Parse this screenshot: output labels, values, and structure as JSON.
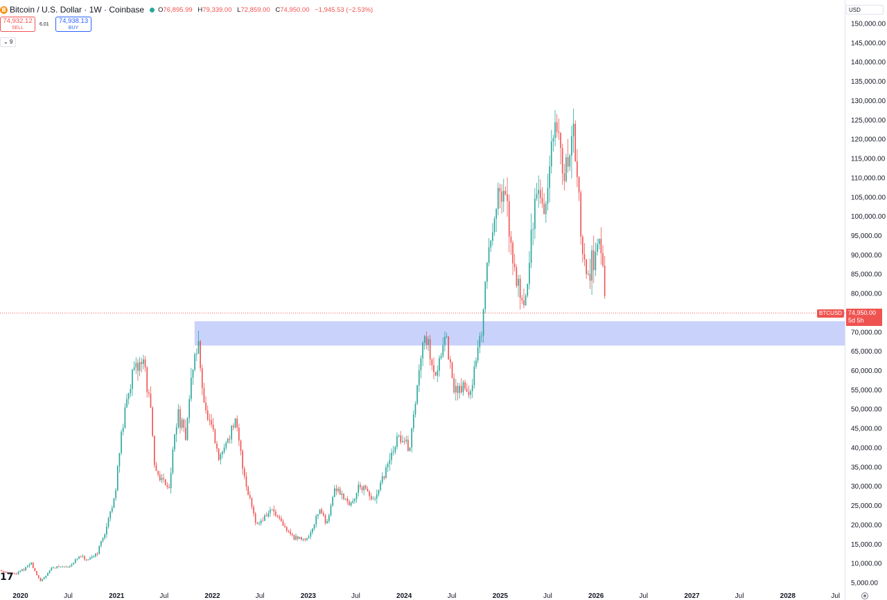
{
  "header": {
    "coin_icon": "bitcoin-icon",
    "coin_glyph": "B",
    "title": "Bitcoin / U.S. Dollar · 1W · Coinbase",
    "open_label": "O",
    "open": "76,895.99",
    "high_label": "H",
    "high": "79,339.00",
    "low_label": "L",
    "low": "72,859.00",
    "close_label": "C",
    "close": "74,950.00",
    "change": "−1,945.53 (−2.53%)"
  },
  "trade": {
    "sell_price": "74,932.12",
    "sell_label": "SELL",
    "spread": "6.01",
    "buy_price": "74,938.13",
    "buy_label": "BUY"
  },
  "indicator_toggle": "⌄ 9",
  "currency": "USD",
  "last_price": {
    "symbol": "BTCUSD",
    "price": "74,950.00",
    "countdown": "5d 5h"
  },
  "tv_logo": "17",
  "colors": {
    "up": "#26a69a",
    "down": "#ef5350",
    "zone": "#c9d2fb",
    "axis_text": "#131722",
    "price_line": "#ef5350"
  },
  "chart_data": {
    "type": "candlestick",
    "symbol": "BTCUSD",
    "interval": "1W",
    "ylim": [
      5000,
      150000
    ],
    "y_ticks": [
      5000,
      10000,
      15000,
      20000,
      25000,
      30000,
      35000,
      40000,
      45000,
      50000,
      55000,
      60000,
      65000,
      70000,
      75000,
      80000,
      85000,
      90000,
      95000,
      100000,
      105000,
      110000,
      115000,
      120000,
      125000,
      130000,
      135000,
      140000,
      145000,
      150000
    ],
    "y_tick_labels": [
      "5,000.00",
      "10,000.00",
      "15,000.00",
      "20,000.00",
      "25,000.00",
      "30,000.00",
      "35,000.00",
      "40,000.00",
      "45,000.00",
      "50,000.00",
      "55,000.00",
      "60,000.00",
      "65,000.00",
      "70,000.00",
      "75,000.00",
      "80,000.00",
      "85,000.00",
      "90,000.00",
      "95,000.00",
      "100,000.00",
      "105,000.00",
      "110,000.00",
      "115,000.00",
      "120,000.00",
      "125,000.00",
      "130,000.00",
      "135,000.00",
      "140,000.00",
      "145,000.00",
      "150,000.00"
    ],
    "x_ticks": [
      {
        "date": "2020-01-01",
        "label": "2020",
        "bold": true
      },
      {
        "date": "2020-07-01",
        "label": "Jul",
        "bold": false
      },
      {
        "date": "2021-01-01",
        "label": "2021",
        "bold": true
      },
      {
        "date": "2021-07-01",
        "label": "Jul",
        "bold": false
      },
      {
        "date": "2022-01-01",
        "label": "2022",
        "bold": true
      },
      {
        "date": "2022-07-01",
        "label": "Jul",
        "bold": false
      },
      {
        "date": "2023-01-01",
        "label": "2023",
        "bold": true
      },
      {
        "date": "2023-07-01",
        "label": "Jul",
        "bold": false
      },
      {
        "date": "2024-01-01",
        "label": "2024",
        "bold": true
      },
      {
        "date": "2024-07-01",
        "label": "Jul",
        "bold": false
      },
      {
        "date": "2025-01-01",
        "label": "2025",
        "bold": true
      },
      {
        "date": "2025-07-01",
        "label": "Jul",
        "bold": false
      },
      {
        "date": "2026-01-01",
        "label": "2026",
        "bold": true
      },
      {
        "date": "2026-07-01",
        "label": "Jul",
        "bold": false
      },
      {
        "date": "2027-01-01",
        "label": "2027",
        "bold": true
      },
      {
        "date": "2027-07-01",
        "label": "Jul",
        "bold": false
      },
      {
        "date": "2028-01-01",
        "label": "2028",
        "bold": true
      },
      {
        "date": "2028-07-01",
        "label": "Jul",
        "bold": false
      }
    ],
    "x_range": [
      "2019-10-15",
      "2028-08-05"
    ],
    "last_price": 74950,
    "zone": {
      "start": "2021-10-25",
      "low": 66500,
      "high": 72800
    },
    "price_path": [
      [
        "2019-10-15",
        8200
      ],
      [
        "2019-12-15",
        7200
      ],
      [
        "2020-01-20",
        8800
      ],
      [
        "2020-02-10",
        10100
      ],
      [
        "2020-03-16",
        5200
      ],
      [
        "2020-05-01",
        9000
      ],
      [
        "2020-07-01",
        9200
      ],
      [
        "2020-08-15",
        11800
      ],
      [
        "2020-09-15",
        10600
      ],
      [
        "2020-10-20",
        13000
      ],
      [
        "2020-11-20",
        18500
      ],
      [
        "2020-12-25",
        27000
      ],
      [
        "2021-01-10",
        39000
      ],
      [
        "2021-02-20",
        57000
      ],
      [
        "2021-04-12",
        63500
      ],
      [
        "2021-05-12",
        49000
      ],
      [
        "2021-05-24",
        35000
      ],
      [
        "2021-06-25",
        31500
      ],
      [
        "2021-07-20",
        30000
      ],
      [
        "2021-08-20",
        49000
      ],
      [
        "2021-09-20",
        43000
      ],
      [
        "2021-10-20",
        62000
      ],
      [
        "2021-11-08",
        66500
      ],
      [
        "2021-12-05",
        49000
      ],
      [
        "2022-01-10",
        42000
      ],
      [
        "2022-01-24",
        36500
      ],
      [
        "2022-03-28",
        47000
      ],
      [
        "2022-05-09",
        30500
      ],
      [
        "2022-06-20",
        20000
      ],
      [
        "2022-08-15",
        24000
      ],
      [
        "2022-10-01",
        19300
      ],
      [
        "2022-11-14",
        16500
      ],
      [
        "2022-12-31",
        16500
      ],
      [
        "2023-02-15",
        24500
      ],
      [
        "2023-03-10",
        20000
      ],
      [
        "2023-04-15",
        30000
      ],
      [
        "2023-06-15",
        25000
      ],
      [
        "2023-07-15",
        30500
      ],
      [
        "2023-09-11",
        26000
      ],
      [
        "2023-10-23",
        34000
      ],
      [
        "2023-12-10",
        43000
      ],
      [
        "2024-01-22",
        40000
      ],
      [
        "2024-02-28",
        60000
      ],
      [
        "2024-03-14",
        71000
      ],
      [
        "2024-05-01",
        58500
      ],
      [
        "2024-06-05",
        70500
      ],
      [
        "2024-07-05",
        55000
      ],
      [
        "2024-08-05",
        56000
      ],
      [
        "2024-09-06",
        54000
      ],
      [
        "2024-10-20",
        68500
      ],
      [
        "2024-11-11",
        88000
      ],
      [
        "2024-12-16",
        104000
      ],
      [
        "2025-01-20",
        105000
      ],
      [
        "2025-02-28",
        84000
      ],
      [
        "2025-04-07",
        78000
      ],
      [
        "2025-05-20",
        108000
      ],
      [
        "2025-06-22",
        101000
      ],
      [
        "2025-07-14",
        119000
      ],
      [
        "2025-08-14",
        121000
      ],
      [
        "2025-09-01",
        109000
      ],
      [
        "2025-10-06",
        123000
      ],
      [
        "2025-10-20",
        110000
      ],
      [
        "2025-11-21",
        84000
      ],
      [
        "2025-12-15",
        88000
      ],
      [
        "2026-01-12",
        94000
      ],
      [
        "2026-01-26",
        87000
      ],
      [
        "2026-02-02",
        76895.99
      ],
      [
        "2026-02-09",
        74950
      ]
    ]
  }
}
